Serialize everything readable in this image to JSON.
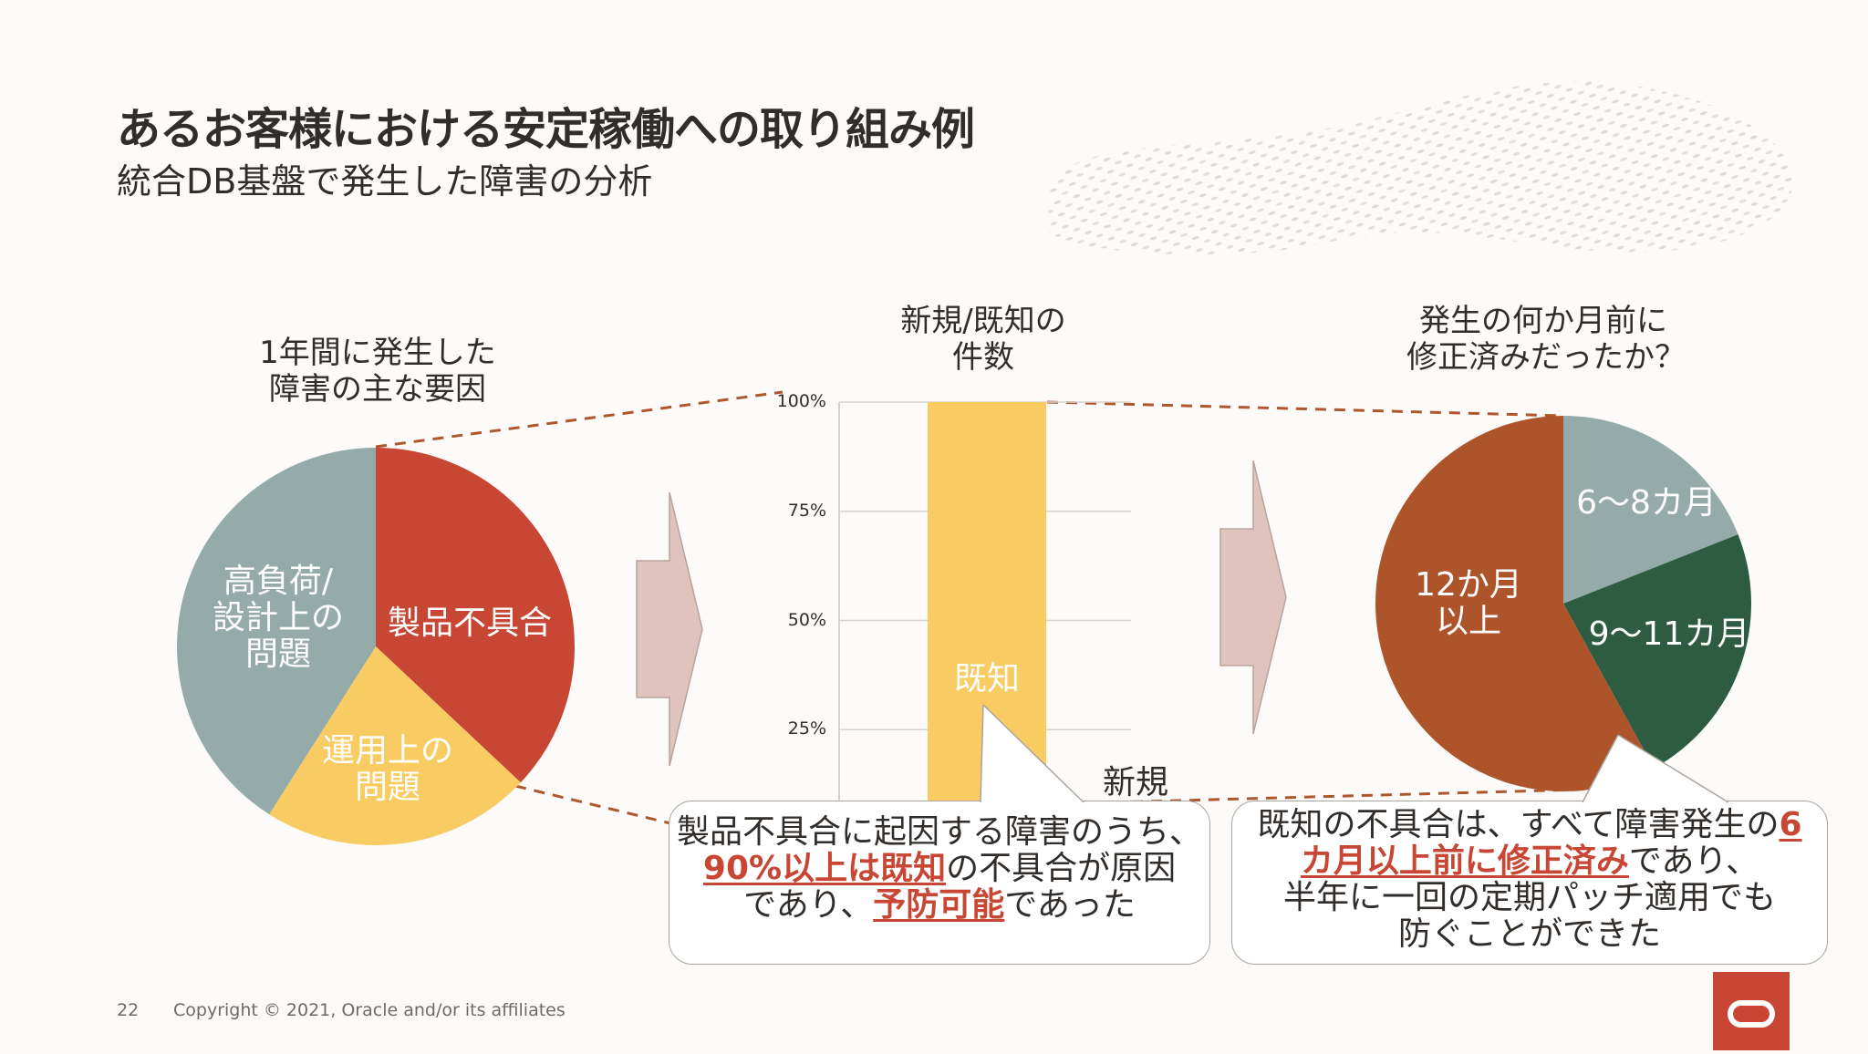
{
  "header": {
    "title": "あるお客様における安定稼働への取り組み例",
    "subtitle": "統合DB基盤で発生した障害の分析"
  },
  "panels": {
    "pie1_title": [
      "1年間に発生した",
      "障害の主な要因"
    ],
    "bar_title": [
      "新規/既知の",
      "件数"
    ],
    "pie2_title": [
      "発生の何か月前に",
      "修正済みだったか？"
    ]
  },
  "chart_data": [
    {
      "type": "pie",
      "title": "1年間に発生した障害の主な要因",
      "slices": [
        {
          "label": "製品不具合",
          "value": 37,
          "color": "#c74634"
        },
        {
          "label": "運用上の問題",
          "value": 22,
          "color": "#f9cc63"
        },
        {
          "label": "高負荷/設計上の問題",
          "value": 41,
          "color": "#94abaa"
        }
      ],
      "slice_labels": {
        "product": [
          "製品不具合"
        ],
        "ops": [
          "運用上の",
          "問題"
        ],
        "load": [
          "高負荷/",
          "設計上の",
          "問題"
        ]
      }
    },
    {
      "type": "bar",
      "title": "新規/既知の件数",
      "categories": [
        ""
      ],
      "stacked": true,
      "series": [
        {
          "name": "既知",
          "values": [
            90
          ],
          "color": "#f9cc63"
        },
        {
          "name": "新規",
          "values": [
            10
          ],
          "color": "#ffffff"
        }
      ],
      "ylim": [
        0,
        100
      ],
      "y_ticks": [
        "100%",
        "75%",
        "50%",
        "25%"
      ],
      "y_tick_values": [
        100,
        75,
        50,
        25
      ],
      "grid": true
    },
    {
      "type": "pie",
      "title": "発生の何か月前に修正済みだったか？",
      "slices": [
        {
          "label": "6〜8カ月",
          "value": 19,
          "color": "#94abaa"
        },
        {
          "label": "9〜11カ月",
          "value": 23,
          "color": "#2e5c42"
        },
        {
          "label": "12か月以上",
          "value": 58,
          "color": "#ad542b"
        }
      ],
      "slice_labels": {
        "a": [
          "6〜8カ月"
        ],
        "b": [
          "9〜11カ月"
        ],
        "c": [
          "12か月",
          "以上"
        ]
      }
    }
  ],
  "callouts": {
    "left": {
      "line1": "製品不具合に起因する障害のうち、",
      "line2_hl": "90%以上は既知",
      "line2_rest": "の不具合が原因",
      "line3_pre": "であり、",
      "line3_hl": "予防可能",
      "line3_rest": "であった"
    },
    "right": {
      "line1_pre": "既知の不具合は、すべて障害発生の",
      "line1_hl": "6",
      "line2_hl": "カ月以上前に修正済み",
      "line2_rest": "であり、",
      "line3": "半年に一回の定期パッチ適用でも",
      "line4": "防ぐことができた"
    }
  },
  "footer": {
    "page": "22",
    "copyright": "Copyright © 2021, Oracle and/or its affiliates"
  },
  "colors": {
    "accent": "#c74634",
    "dashed_line": "#b0562c",
    "arrow": "#e0c3bc"
  }
}
